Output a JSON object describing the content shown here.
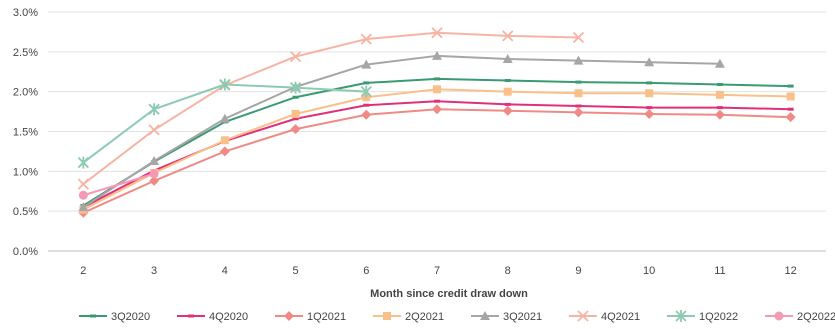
{
  "chart_data": {
    "type": "line",
    "title": "",
    "xlabel": "Month since credit draw down",
    "ylabel": "",
    "x": [
      2,
      3,
      4,
      5,
      6,
      7,
      8,
      9,
      10,
      11,
      12
    ],
    "x_tick_labels": [
      "2",
      "3",
      "4",
      "5",
      "6",
      "7",
      "8",
      "9",
      "10",
      "11",
      "12"
    ],
    "ylim": [
      0,
      3.0
    ],
    "y_ticks": [
      0,
      0.5,
      1.0,
      1.5,
      2.0,
      2.5,
      3.0
    ],
    "y_tick_labels": [
      "0.0%",
      "0.5%",
      "1.0%",
      "1.5%",
      "2.0%",
      "2.5%",
      "3.0%"
    ],
    "grid": "horizontal",
    "legend_position": "bottom",
    "series": [
      {
        "name": "3Q2020",
        "color": "#3a9a72",
        "marker": "dash",
        "values": [
          0.57,
          1.12,
          1.62,
          1.93,
          2.11,
          2.16,
          2.14,
          2.12,
          2.11,
          2.09,
          2.07
        ]
      },
      {
        "name": "4Q2020",
        "color": "#e0307a",
        "marker": "dash",
        "values": [
          0.55,
          1.01,
          1.38,
          1.66,
          1.83,
          1.88,
          1.84,
          1.82,
          1.8,
          1.8,
          1.78
        ]
      },
      {
        "name": "1Q2021",
        "color": "#f08a84",
        "marker": "diamond",
        "values": [
          0.48,
          0.88,
          1.25,
          1.53,
          1.71,
          1.78,
          1.76,
          1.74,
          1.72,
          1.71,
          1.68
        ]
      },
      {
        "name": "2Q2021",
        "color": "#f9c08a",
        "marker": "square",
        "values": [
          0.52,
          0.98,
          1.39,
          1.72,
          1.93,
          2.03,
          2.0,
          1.98,
          1.98,
          1.96,
          1.94
        ]
      },
      {
        "name": "3Q2021",
        "color": "#a6a6a6",
        "marker": "triangle",
        "values": [
          0.55,
          1.13,
          1.66,
          2.06,
          2.34,
          2.45,
          2.41,
          2.39,
          2.37,
          2.35,
          null
        ]
      },
      {
        "name": "4Q2021",
        "color": "#f7b3a4",
        "marker": "x",
        "values": [
          0.84,
          1.52,
          2.08,
          2.44,
          2.66,
          2.74,
          2.7,
          2.68,
          null,
          null,
          null
        ]
      },
      {
        "name": "1Q2022",
        "color": "#8ccbb2",
        "marker": "asterisk",
        "values": [
          1.11,
          1.78,
          2.09,
          2.05,
          2.0,
          null,
          null,
          null,
          null,
          null,
          null
        ]
      },
      {
        "name": "2Q2022",
        "color": "#f59ab4",
        "marker": "circle",
        "values": [
          0.7,
          0.97,
          null,
          null,
          null,
          null,
          null,
          null,
          null,
          null,
          null
        ]
      }
    ]
  }
}
